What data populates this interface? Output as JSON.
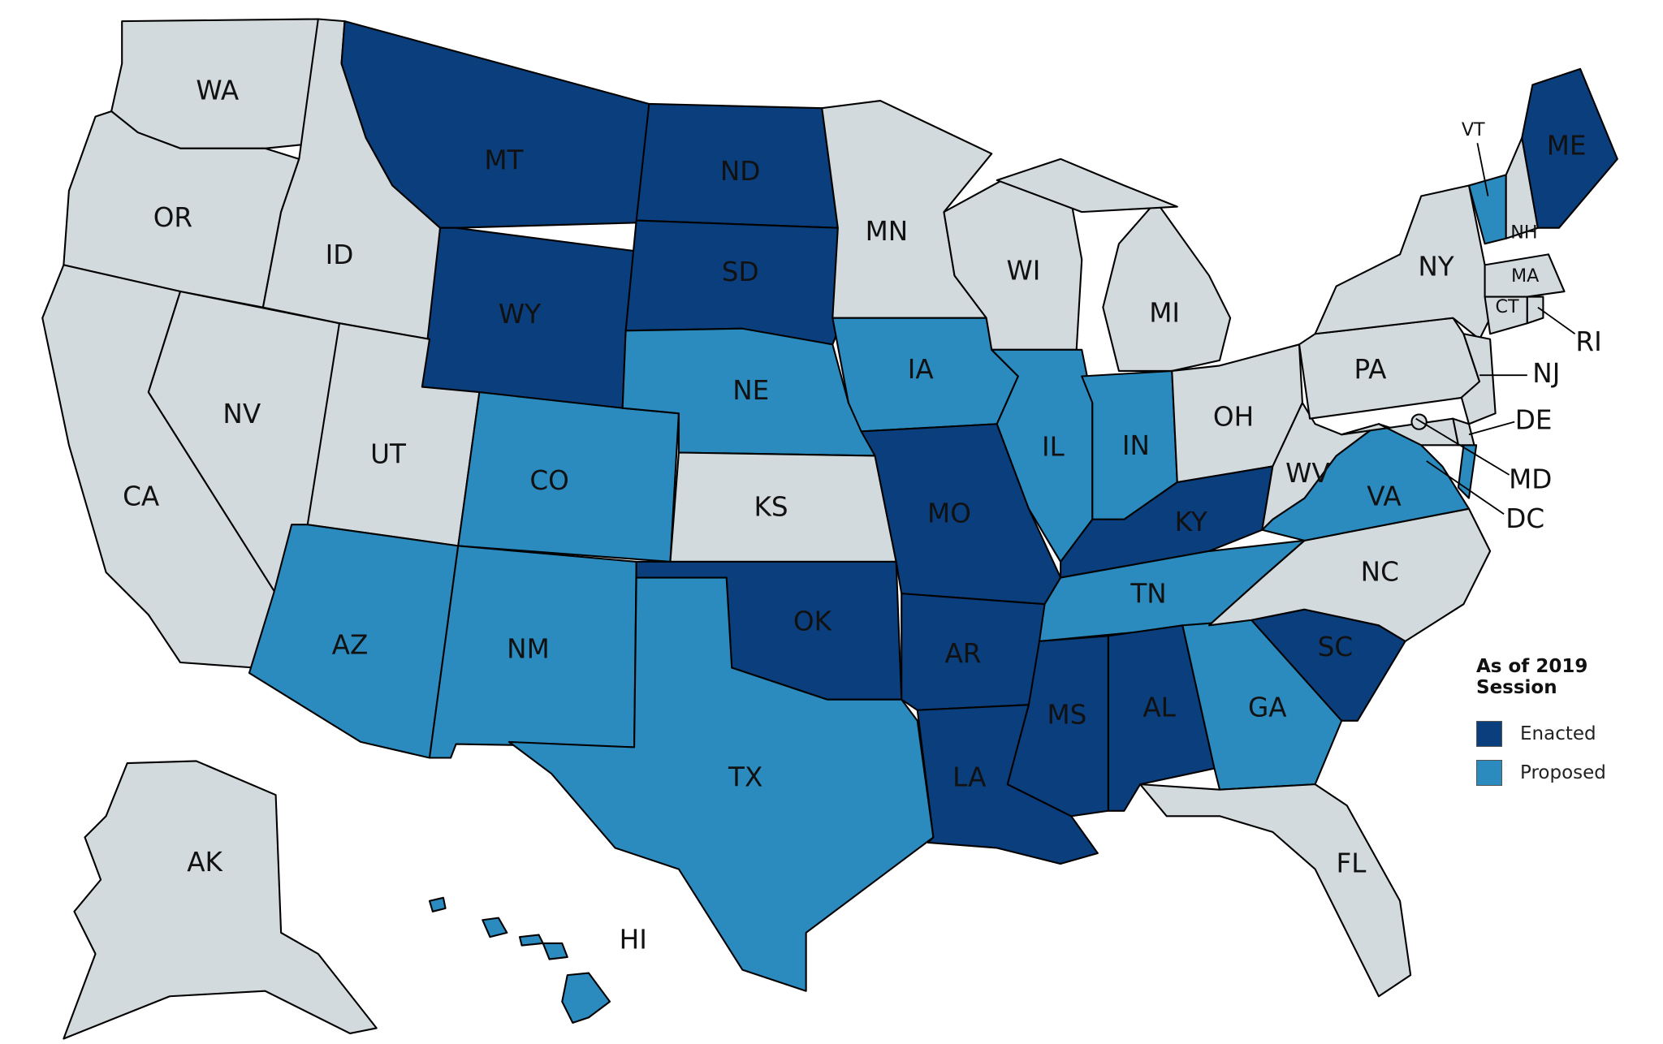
{
  "legend": {
    "title": "As of 2019 Session",
    "items": [
      {
        "key": "enacted",
        "label": "Enacted",
        "color": "#0a3e7c"
      },
      {
        "key": "proposed",
        "label": "Proposed",
        "color": "#2b8bbf"
      }
    ],
    "default_color": "#d3dadd"
  },
  "states": [
    {
      "abbr": "WA",
      "status": "none"
    },
    {
      "abbr": "OR",
      "status": "none"
    },
    {
      "abbr": "CA",
      "status": "none"
    },
    {
      "abbr": "NV",
      "status": "none"
    },
    {
      "abbr": "ID",
      "status": "none"
    },
    {
      "abbr": "MT",
      "status": "enacted"
    },
    {
      "abbr": "WY",
      "status": "enacted"
    },
    {
      "abbr": "UT",
      "status": "none"
    },
    {
      "abbr": "CO",
      "status": "proposed"
    },
    {
      "abbr": "AZ",
      "status": "proposed"
    },
    {
      "abbr": "NM",
      "status": "proposed"
    },
    {
      "abbr": "ND",
      "status": "enacted"
    },
    {
      "abbr": "SD",
      "status": "enacted"
    },
    {
      "abbr": "NE",
      "status": "proposed"
    },
    {
      "abbr": "KS",
      "status": "none"
    },
    {
      "abbr": "OK",
      "status": "enacted"
    },
    {
      "abbr": "TX",
      "status": "proposed"
    },
    {
      "abbr": "MN",
      "status": "none"
    },
    {
      "abbr": "IA",
      "status": "proposed"
    },
    {
      "abbr": "MO",
      "status": "enacted"
    },
    {
      "abbr": "AR",
      "status": "enacted"
    },
    {
      "abbr": "LA",
      "status": "enacted"
    },
    {
      "abbr": "WI",
      "status": "none"
    },
    {
      "abbr": "IL",
      "status": "proposed"
    },
    {
      "abbr": "MI",
      "status": "none"
    },
    {
      "abbr": "IN",
      "status": "proposed"
    },
    {
      "abbr": "OH",
      "status": "none"
    },
    {
      "abbr": "KY",
      "status": "enacted"
    },
    {
      "abbr": "TN",
      "status": "proposed"
    },
    {
      "abbr": "MS",
      "status": "enacted"
    },
    {
      "abbr": "AL",
      "status": "enacted"
    },
    {
      "abbr": "GA",
      "status": "proposed"
    },
    {
      "abbr": "FL",
      "status": "none"
    },
    {
      "abbr": "SC",
      "status": "enacted"
    },
    {
      "abbr": "NC",
      "status": "none"
    },
    {
      "abbr": "VA",
      "status": "proposed"
    },
    {
      "abbr": "WV",
      "status": "none"
    },
    {
      "abbr": "PA",
      "status": "none"
    },
    {
      "abbr": "NY",
      "status": "none"
    },
    {
      "abbr": "VT",
      "status": "proposed"
    },
    {
      "abbr": "NH",
      "status": "none"
    },
    {
      "abbr": "ME",
      "status": "enacted"
    },
    {
      "abbr": "MA",
      "status": "none"
    },
    {
      "abbr": "CT",
      "status": "none"
    },
    {
      "abbr": "RI",
      "status": "none"
    },
    {
      "abbr": "NJ",
      "status": "none"
    },
    {
      "abbr": "DE",
      "status": "none"
    },
    {
      "abbr": "MD",
      "status": "none"
    },
    {
      "abbr": "DC",
      "status": "none"
    },
    {
      "abbr": "AK",
      "status": "none"
    },
    {
      "abbr": "HI",
      "status": "proposed"
    }
  ]
}
